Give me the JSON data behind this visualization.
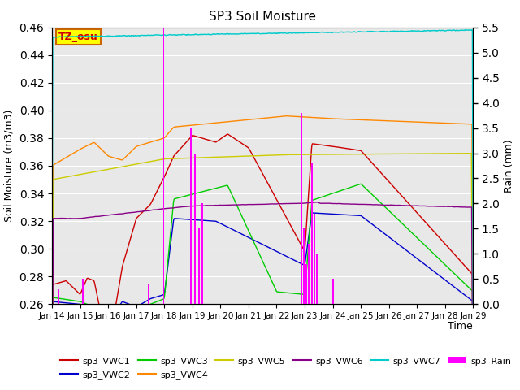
{
  "title": "SP3 Soil Moisture",
  "xlabel": "Time",
  "ylabel_left": "Soil Moisture (m3/m3)",
  "ylabel_right": "Rain (mm)",
  "ylim_left": [
    0.26,
    0.46
  ],
  "ylim_right": [
    0.0,
    5.5
  ],
  "xlim": [
    0,
    360
  ],
  "xtick_labels": [
    "Jan 14",
    "Jan 15",
    "Jan 16",
    "Jan 17",
    "Jan 18",
    "Jan 19",
    "Jan 20",
    "Jan 21",
    "Jan 22",
    "Jan 23",
    "Jan 24",
    "Jan 25",
    "Jan 26",
    "Jan 27",
    "Jan 28",
    "Jan 29"
  ],
  "xtick_positions": [
    0,
    24,
    48,
    72,
    96,
    120,
    144,
    168,
    192,
    216,
    240,
    264,
    288,
    312,
    336,
    360
  ],
  "bg_color": "#e8e8e8",
  "annotation_text": "TZ_osu",
  "annotation_bg": "#ffff00",
  "annotation_border": "#cc6600",
  "annotation_text_color": "#cc0000",
  "colors": {
    "VWC1": "#cc0000",
    "VWC2": "#0000cc",
    "VWC3": "#00cc00",
    "VWC4": "#ff8800",
    "VWC5": "#cccc00",
    "VWC6": "#880088",
    "VWC7": "#00cccc",
    "Rain": "#ff00ff"
  },
  "legend_labels": [
    "sp3_VWC1",
    "sp3_VWC2",
    "sp3_VWC3",
    "sp3_VWC4",
    "sp3_VWC5",
    "sp3_VWC6",
    "sp3_VWC7",
    "sp3_Rain"
  ]
}
